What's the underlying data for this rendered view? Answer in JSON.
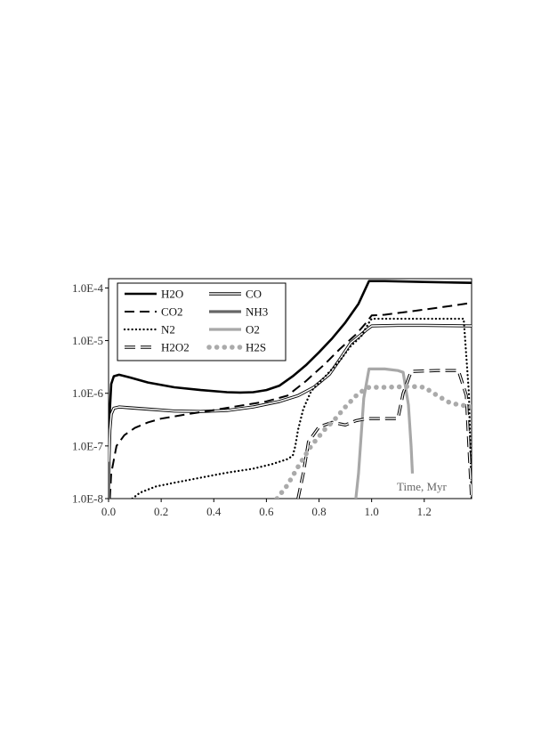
{
  "chart_data": {
    "type": "line",
    "title": "",
    "xlabel": "",
    "ylabel": "",
    "annotation": "Time, Myr",
    "xlim": [
      0,
      1.38
    ],
    "ylim": [
      1e-08,
      0.00015
    ],
    "yscale": "log",
    "x_ticks": [
      "0.0",
      "0.2",
      "0.4",
      "0.6",
      "0.8",
      "1.0",
      "1.2"
    ],
    "x_tick_values": [
      0,
      0.2,
      0.4,
      0.6,
      0.8,
      1.0,
      1.2
    ],
    "y_ticks": [
      "1.0E-8",
      "1.0E-7",
      "1.0E-6",
      "1.0E-5",
      "1.0E-4"
    ],
    "y_tick_values": [
      1e-08,
      1e-07,
      1e-06,
      1e-05,
      0.0001
    ],
    "grid": false,
    "legend_position": "top-left",
    "series": [
      {
        "name": "H2O",
        "color": "#000000",
        "style": "thick-solid",
        "points": [
          [
            0.0,
            3e-08
          ],
          [
            0.005,
            5e-07
          ],
          [
            0.01,
            1.5e-06
          ],
          [
            0.02,
            2.1e-06
          ],
          [
            0.04,
            2.25e-06
          ],
          [
            0.08,
            2e-06
          ],
          [
            0.15,
            1.6e-06
          ],
          [
            0.25,
            1.3e-06
          ],
          [
            0.35,
            1.15e-06
          ],
          [
            0.45,
            1.05e-06
          ],
          [
            0.5,
            1.03e-06
          ],
          [
            0.55,
            1.05e-06
          ],
          [
            0.6,
            1.15e-06
          ],
          [
            0.65,
            1.4e-06
          ],
          [
            0.7,
            2.1e-06
          ],
          [
            0.75,
            3.4e-06
          ],
          [
            0.8,
            6e-06
          ],
          [
            0.85,
            1.1e-05
          ],
          [
            0.9,
            2.2e-05
          ],
          [
            0.95,
            5e-05
          ],
          [
            0.99,
            0.000135
          ],
          [
            1.05,
            0.000135
          ],
          [
            1.2,
            0.00013
          ],
          [
            1.38,
            0.000125
          ]
        ]
      },
      {
        "name": "CO",
        "color": "#000000",
        "style": "double-thin",
        "points": [
          [
            0.0,
            3e-08
          ],
          [
            0.005,
            2e-07
          ],
          [
            0.01,
            4e-07
          ],
          [
            0.02,
            5.2e-07
          ],
          [
            0.04,
            5.5e-07
          ],
          [
            0.08,
            5.3e-07
          ],
          [
            0.15,
            5e-07
          ],
          [
            0.25,
            4.6e-07
          ],
          [
            0.35,
            4.5e-07
          ],
          [
            0.45,
            4.7e-07
          ],
          [
            0.55,
            5.5e-07
          ],
          [
            0.65,
            7e-07
          ],
          [
            0.72,
            9e-07
          ],
          [
            0.78,
            1.3e-06
          ],
          [
            0.84,
            2.3e-06
          ],
          [
            0.88,
            4.5e-06
          ],
          [
            0.92,
            9e-06
          ],
          [
            0.96,
            1.3e-05
          ],
          [
            0.98,
            1.6e-05
          ],
          [
            1.0,
            1.9e-05
          ],
          [
            1.1,
            1.95e-05
          ],
          [
            1.2,
            1.95e-05
          ],
          [
            1.38,
            1.9e-05
          ]
        ]
      },
      {
        "name": "CO2",
        "color": "#000000",
        "style": "long-dash",
        "points": [
          [
            0.005,
            1e-08
          ],
          [
            0.01,
            3e-08
          ],
          [
            0.03,
            1e-07
          ],
          [
            0.06,
            1.6e-07
          ],
          [
            0.1,
            2.2e-07
          ],
          [
            0.15,
            2.8e-07
          ],
          [
            0.2,
            3.3e-07
          ],
          [
            0.3,
            4e-07
          ],
          [
            0.4,
            4.8e-07
          ],
          [
            0.5,
            5.8e-07
          ],
          [
            0.6,
            7e-07
          ],
          [
            0.68,
            9e-07
          ],
          [
            0.75,
            1.7e-06
          ],
          [
            0.82,
            3.5e-06
          ],
          [
            0.88,
            7e-06
          ],
          [
            0.94,
            1.3e-05
          ],
          [
            0.98,
            2.2e-05
          ],
          [
            1.0,
            3e-05
          ],
          [
            1.05,
            3.1e-05
          ],
          [
            1.15,
            3.6e-05
          ],
          [
            1.25,
            4.2e-05
          ],
          [
            1.38,
            5.2e-05
          ]
        ]
      },
      {
        "name": "NH3",
        "color": "#666666",
        "style": "thick-gray",
        "points": [
          [
            0.0,
            1e-08
          ],
          [
            0.003,
            5e-08
          ]
        ]
      },
      {
        "name": "N2",
        "color": "#000000",
        "style": "dotted",
        "points": [
          [
            0.09,
            1e-08
          ],
          [
            0.12,
            1.3e-08
          ],
          [
            0.18,
            1.7e-08
          ],
          [
            0.25,
            2e-08
          ],
          [
            0.35,
            2.5e-08
          ],
          [
            0.45,
            3.1e-08
          ],
          [
            0.55,
            3.7e-08
          ],
          [
            0.62,
            4.5e-08
          ],
          [
            0.68,
            5.6e-08
          ],
          [
            0.7,
            6.5e-08
          ],
          [
            0.71,
            1e-07
          ],
          [
            0.72,
            2e-07
          ],
          [
            0.74,
            5e-07
          ],
          [
            0.77,
            1.1e-06
          ],
          [
            0.82,
            2e-06
          ],
          [
            0.88,
            4.2e-06
          ],
          [
            0.92,
            7.8e-06
          ],
          [
            0.96,
            1.2e-05
          ],
          [
            0.99,
            2.2e-05
          ],
          [
            1.0,
            2.6e-05
          ],
          [
            1.1,
            2.6e-05
          ],
          [
            1.2,
            2.6e-05
          ],
          [
            1.35,
            2.6e-05
          ],
          [
            1.37,
            1e-06
          ],
          [
            1.38,
            1e-08
          ]
        ]
      },
      {
        "name": "O2",
        "color": "#a8a8a8",
        "style": "thick-gray",
        "points": [
          [
            0.94,
            1e-08
          ],
          [
            0.95,
            3e-08
          ],
          [
            0.97,
            8e-07
          ],
          [
            0.99,
            2.9e-06
          ],
          [
            1.05,
            2.9e-06
          ],
          [
            1.1,
            2.7e-06
          ],
          [
            1.12,
            2.5e-06
          ],
          [
            1.14,
            6e-07
          ],
          [
            1.15,
            1e-07
          ],
          [
            1.155,
            3e-08
          ]
        ]
      },
      {
        "name": "H2O2",
        "color": "#000000",
        "style": "double-dash",
        "points": [
          [
            0.72,
            1e-08
          ],
          [
            0.74,
            3e-08
          ],
          [
            0.76,
            1.2e-07
          ],
          [
            0.8,
            2.3e-07
          ],
          [
            0.85,
            2.8e-07
          ],
          [
            0.9,
            2.5e-07
          ],
          [
            0.94,
            3e-07
          ],
          [
            0.98,
            3.3e-07
          ],
          [
            1.05,
            3.3e-07
          ],
          [
            1.1,
            3.3e-07
          ],
          [
            1.12,
            1e-06
          ],
          [
            1.15,
            2.6e-06
          ],
          [
            1.25,
            2.7e-06
          ],
          [
            1.33,
            2.7e-06
          ],
          [
            1.36,
            9e-07
          ],
          [
            1.38,
            1e-08
          ]
        ]
      },
      {
        "name": "H2S",
        "color": "#aaaaaa",
        "style": "round-dot",
        "points": [
          [
            0.64,
            1e-08
          ],
          [
            0.68,
            1.8e-08
          ],
          [
            0.72,
            4e-08
          ],
          [
            0.77,
            1e-07
          ],
          [
            0.82,
            2e-07
          ],
          [
            0.86,
            3.2e-07
          ],
          [
            0.9,
            5.5e-07
          ],
          [
            0.95,
            1e-06
          ],
          [
            0.99,
            1.3e-06
          ],
          [
            1.05,
            1.3e-06
          ],
          [
            1.15,
            1.35e-06
          ],
          [
            1.2,
            1.3e-06
          ],
          [
            1.25,
            9e-07
          ],
          [
            1.3,
            6.5e-07
          ],
          [
            1.38,
            5.5e-07
          ]
        ]
      }
    ]
  }
}
